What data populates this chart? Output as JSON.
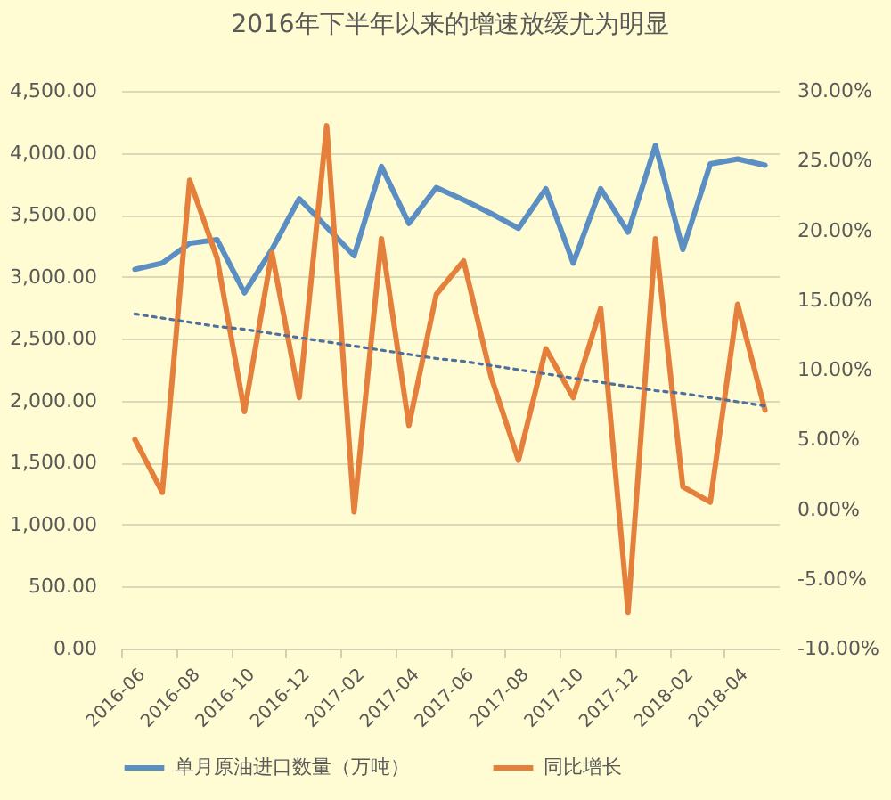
{
  "chart_data": {
    "type": "line",
    "title": "2016年下半年以来的增速放缓尤为明显",
    "categories": [
      "2016-06",
      null,
      "2016-08",
      null,
      "2016-10",
      null,
      "2016-12",
      null,
      "2017-02",
      null,
      "2017-04",
      null,
      "2017-06",
      null,
      "2017-08",
      null,
      "2017-10",
      null,
      "2017-12",
      null,
      "2018-02",
      null,
      "2018-04",
      null
    ],
    "series": [
      {
        "name": "单月原油进口数量（万吨）",
        "color": "#5b8fc4",
        "line_style": "solid",
        "values": [
          3060,
          3110,
          3270,
          3300,
          2870,
          3220,
          3630,
          3400,
          3170,
          3890,
          3430,
          3720,
          3620,
          3510,
          3390,
          3710,
          3110,
          3710,
          3360,
          4060,
          3220,
          3910,
          3950,
          3900
        ]
      },
      {
        "name": "同比增长",
        "color": "#e5803c",
        "axis": "y2",
        "line_style": "solid",
        "values": [
          5.0,
          1.2,
          23.6,
          18.0,
          7.0,
          18.4,
          8.0,
          27.5,
          -0.2,
          19.4,
          6.0,
          15.4,
          17.8,
          9.5,
          3.5,
          11.5,
          8.0,
          14.4,
          -7.4,
          19.4,
          1.6,
          0.5,
          14.7,
          7.1
        ]
      },
      {
        "type": "line",
        "color": "#4f6f9e",
        "axis": "y2",
        "line_style": "dotted",
        "values": [
          14.0,
          13.7,
          13.4,
          13.1,
          12.9,
          12.6,
          12.3,
          12.0,
          11.7,
          11.4,
          11.1,
          10.8,
          10.6,
          10.3,
          10.0,
          9.7,
          9.4,
          9.1,
          8.8,
          8.5,
          8.3,
          8.0,
          7.7,
          7.4
        ]
      }
    ],
    "ylim": [
      0,
      4500
    ],
    "yticks": [
      {
        "value": 0,
        "label": "0.00"
      },
      {
        "value": 500,
        "label": "500.00"
      },
      {
        "value": 1000,
        "label": "1,000.00"
      },
      {
        "value": 1500,
        "label": "1,500.00"
      },
      {
        "value": 2000,
        "label": "2,000.00"
      },
      {
        "value": 2500,
        "label": "2,500.00"
      },
      {
        "value": 3000,
        "label": "3,000.00"
      },
      {
        "value": 3500,
        "label": "3,500.00"
      },
      {
        "value": 4000,
        "label": "4,000.00"
      },
      {
        "value": 4500,
        "label": "4,500.00"
      }
    ],
    "y2lim": [
      -10,
      30
    ],
    "y2ticks": [
      {
        "value": -10,
        "label": "-10.00%"
      },
      {
        "value": -5,
        "label": "-5.00%"
      },
      {
        "value": 0,
        "label": "0.00%"
      },
      {
        "value": 5,
        "label": "5.00%"
      },
      {
        "value": 10,
        "label": "10.00%"
      },
      {
        "value": 15,
        "label": "15.00%"
      },
      {
        "value": 20,
        "label": "20.00%"
      },
      {
        "value": 25,
        "label": "25.00%"
      },
      {
        "value": 30,
        "label": "30.00%"
      }
    ],
    "grid": "y",
    "legend": "bottom"
  }
}
